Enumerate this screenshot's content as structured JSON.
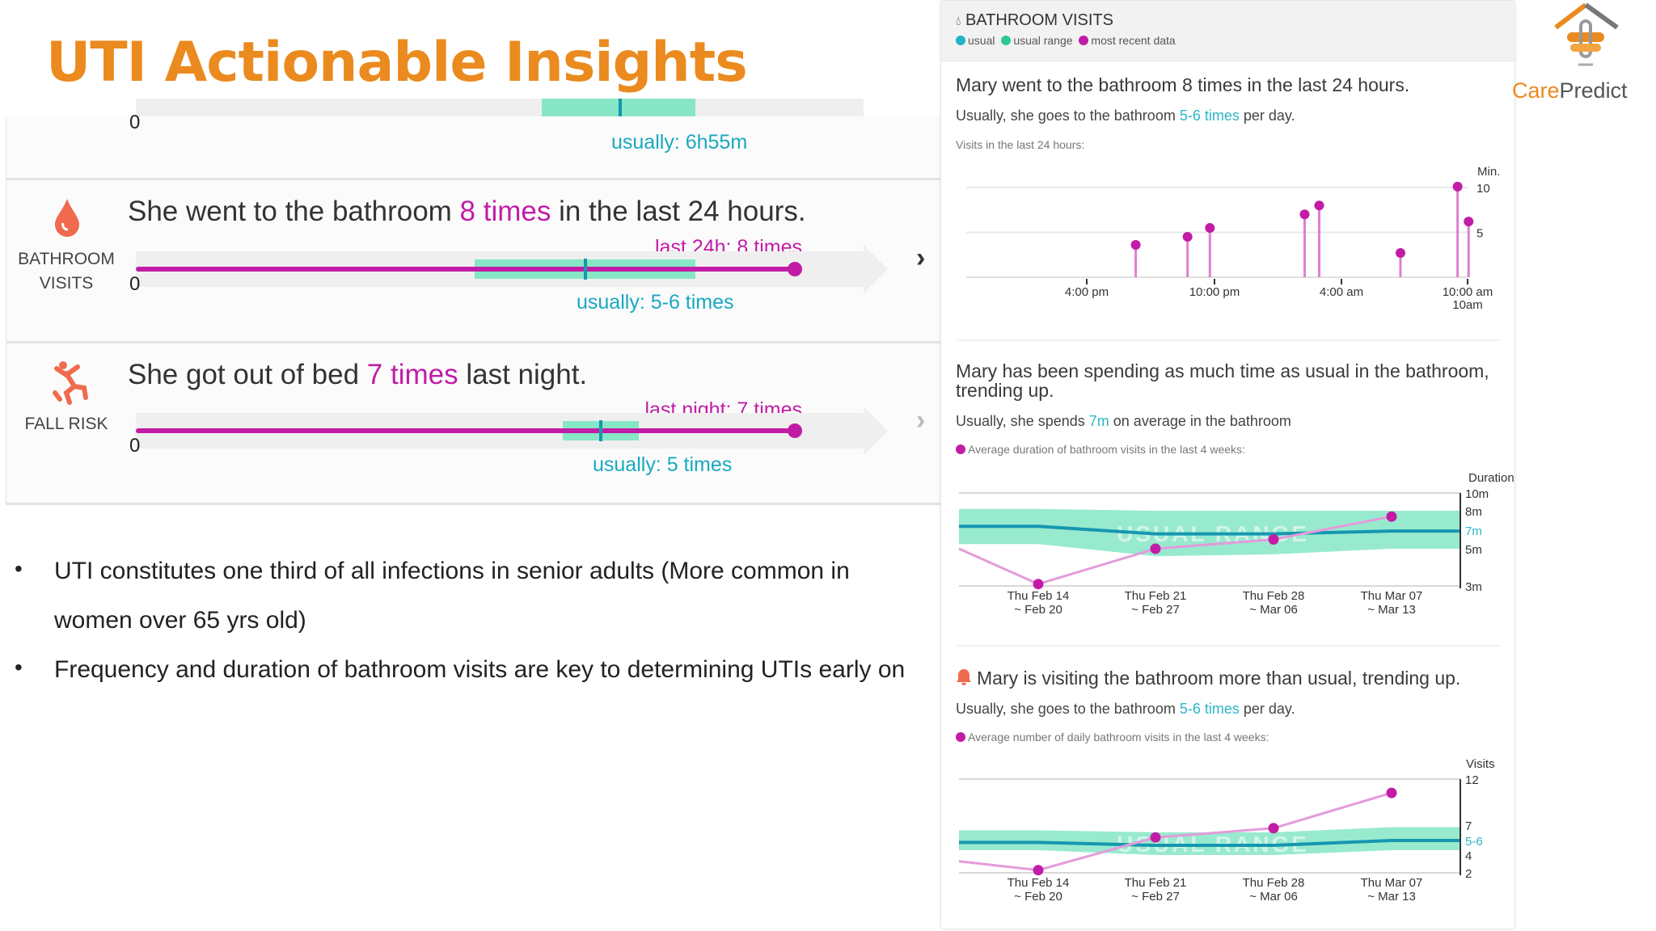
{
  "slide": {
    "title": "UTI Actionable Insights",
    "bullets": [
      "UTI constitutes one third of all infections in senior adults (More common in women over 65 yrs old)",
      "Frequency and duration of bathroom visits are key to determining UTIs early on"
    ],
    "bullet_marker": "•"
  },
  "colors": {
    "title": "#EB8A1E",
    "most_recent": "#C21CA6",
    "usual": "#19A9BE",
    "usual_range": "#86E6C6",
    "alert_icon": "#F06A4E"
  },
  "left_panel": {
    "rows": [
      {
        "zero": "0",
        "usual_label": "usually: 6h55m"
      },
      {
        "icon": "water-drop-icon",
        "category": [
          "BATHROOM",
          "VISITS"
        ],
        "sentence_pre": "She went to the bathroom ",
        "sentence_hl": "8 times",
        "sentence_post": " in the last 24 hours.",
        "value_label": "last 24h: 8 times",
        "zero": "0",
        "usual_label": "usually: 5-6 times",
        "value": 8,
        "usual_range": [
          5,
          6
        ],
        "chevron": "chevron-right-icon"
      },
      {
        "icon": "falling-person-icon",
        "category": [
          "FALL RISK"
        ],
        "sentence_pre": "She got out of bed ",
        "sentence_hl": "7 times",
        "sentence_post": " last night.",
        "value_label": "last night: 7 times",
        "zero": "0",
        "usual_label": "usually: 5 times",
        "value": 7,
        "usual_value": 5,
        "chevron": "chevron-right-icon"
      }
    ]
  },
  "right_panel": {
    "header": {
      "icon": "water-drop-icon",
      "title": "BATHROOM VISITS",
      "legend": [
        "usual",
        "usual range",
        "most recent data"
      ]
    },
    "section1": {
      "headline": "Mary went to the bathroom 8 times in the last 24 hours.",
      "sub_pre": "Usually, she goes to the bathroom ",
      "sub_hl": "5-6 times",
      "sub_post": " per day.",
      "caption": "Visits in the last 24 hours:"
    },
    "section2": {
      "headline": "Mary has been spending as much time as usual in the bathroom, trending up.",
      "sub_pre": "Usually, she spends ",
      "sub_hl": "7m",
      "sub_post": " on average in the bathroom",
      "caption": "Average duration of bathroom visits in the last 4 weeks:"
    },
    "section3": {
      "alert_icon": "bell-icon",
      "headline": "Mary is visiting the bathroom more than usual, trending up.",
      "sub_pre": "Usually, she goes to the bathroom ",
      "sub_hl": "5-6 times",
      "sub_post": " per day.",
      "caption": "Average number of daily bathroom visits in the last 4 weeks:"
    }
  },
  "logo": {
    "text_a": "Care",
    "text_b": "Predict"
  },
  "chart_data": [
    {
      "type": "scatter",
      "style": "lollipop",
      "ylabel": "Min.",
      "y_ticks": [
        10,
        5
      ],
      "ylim": [
        0,
        10
      ],
      "x_ticks": [
        "4:00 pm",
        "10:00 pm",
        "4:00 am",
        "10:00 am"
      ],
      "x_tick_sublabel": "10am",
      "grid": true,
      "points": [
        {
          "time": "6:18 pm",
          "value": 3.6
        },
        {
          "time": "8:44 pm",
          "value": 4.5
        },
        {
          "time": "9:47 pm",
          "value": 5.5
        },
        {
          "time": "2:14 am",
          "value": 7.0
        },
        {
          "time": "2:55 am",
          "value": 8.0
        },
        {
          "time": "6:44 am",
          "value": 2.7
        },
        {
          "time": "9:25 am",
          "value": 10.1
        },
        {
          "time": "9:56 am",
          "value": 6.2
        }
      ]
    },
    {
      "type": "line",
      "ylabel": "Duration",
      "y_ticks": [
        "10m",
        "8m",
        "7m",
        "5m",
        "3m"
      ],
      "y_tick_values": [
        10,
        8,
        7,
        5,
        3
      ],
      "highlight_tick": "7m",
      "categories": [
        [
          "Thu Feb 14",
          "~ Feb 20"
        ],
        [
          "Thu Feb 21",
          "~ Feb 27"
        ],
        [
          "Thu Feb 28",
          "~ Mar 06"
        ],
        [
          "Thu Mar 07",
          "~ Mar 13"
        ]
      ],
      "usual_range_label": "USUAL RANGE",
      "series": [
        {
          "name": "Average duration of bathroom visits in the last 4 weeks:",
          "start_value": 5.0,
          "values": [
            3.1,
            5.0,
            6.0,
            7.7
          ]
        }
      ],
      "usual": [
        7.2,
        6.6,
        6.6,
        6.9
      ],
      "usual_band": {
        "upper": [
          8.2,
          8.0,
          8.0,
          8.0
        ],
        "lower": [
          5.5,
          4.6,
          4.7,
          5.0
        ]
      }
    },
    {
      "type": "line",
      "ylabel": "Visits",
      "y_ticks": [
        "12",
        "7",
        "5-6",
        "4",
        "2"
      ],
      "y_tick_values": [
        12,
        7,
        5.5,
        4,
        2
      ],
      "highlight_tick": "5-6",
      "categories": [
        [
          "Thu Feb 14",
          "~ Feb 20"
        ],
        [
          "Thu Feb 21",
          "~ Feb 27"
        ],
        [
          "Thu Feb 28",
          "~ Mar 06"
        ],
        [
          "Thu Mar 07",
          "~ Mar 13"
        ]
      ],
      "usual_range_label": "USUAL RANGE",
      "series": [
        {
          "name": "Average number of daily bathroom visits in the last 4 weeks:",
          "start_value": 3.3,
          "values": [
            2.3,
            5.8,
            6.7,
            10.5
          ]
        }
      ],
      "usual": [
        5.3,
        5.0,
        5.0,
        5.5
      ],
      "usual_band": {
        "upper": [
          6.5,
          6.3,
          6.3,
          6.8
        ],
        "lower": [
          4.5,
          4.0,
          4.0,
          4.5
        ]
      }
    }
  ]
}
